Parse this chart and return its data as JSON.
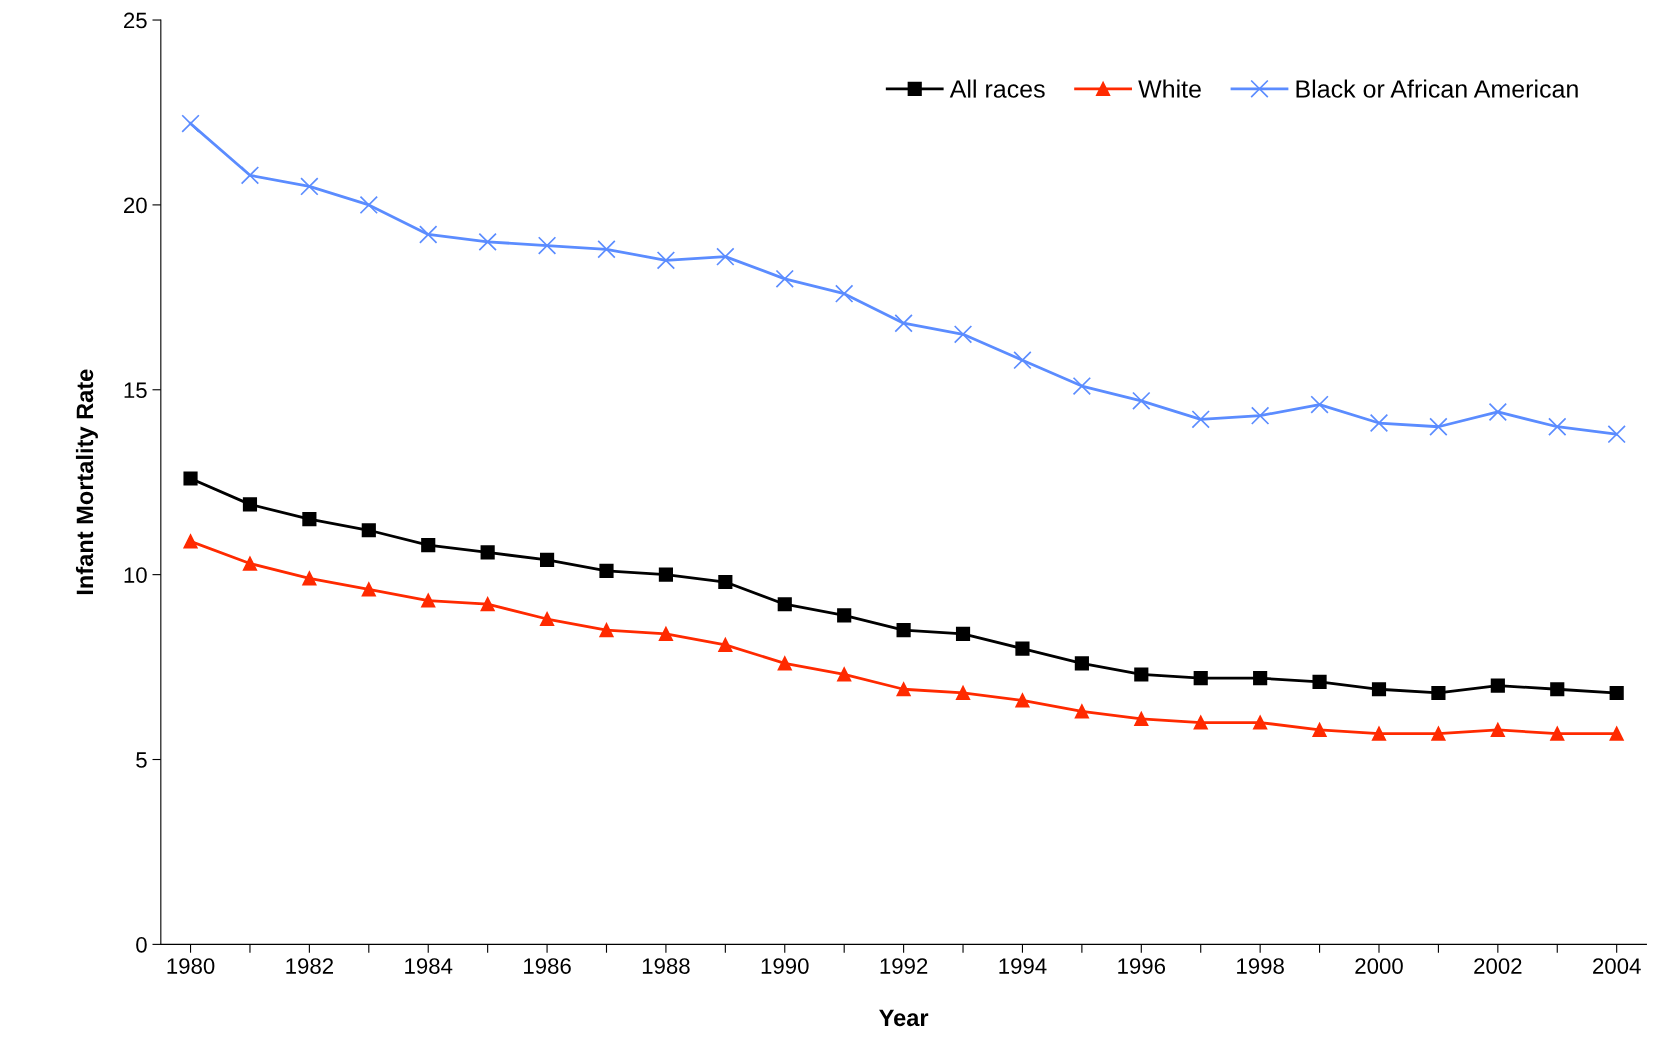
{
  "chart_data": {
    "type": "line",
    "xlabel": "Year",
    "ylabel": "Infant Mortality Rate",
    "categories": [
      "1980",
      null,
      "1982",
      null,
      "1984",
      null,
      "1986",
      null,
      "1988",
      null,
      "1990",
      null,
      "1992",
      null,
      "1994",
      null,
      "1996",
      null,
      "1998",
      null,
      "2000",
      null,
      "2002",
      null,
      "2004"
    ],
    "series": [
      {
        "name": "All races",
        "color": "#000000",
        "marker": "square",
        "values": [
          12.6,
          11.9,
          11.5,
          11.2,
          10.8,
          10.6,
          10.4,
          10.1,
          10.0,
          9.8,
          9.2,
          8.9,
          8.5,
          8.4,
          8.0,
          7.6,
          7.3,
          7.2,
          7.2,
          7.1,
          6.9,
          6.8,
          7.0,
          6.9,
          6.8
        ]
      },
      {
        "name": "White",
        "color": "#ff2a00",
        "marker": "triangle",
        "values": [
          10.9,
          10.3,
          9.9,
          9.6,
          9.3,
          9.2,
          8.8,
          8.5,
          8.4,
          8.1,
          7.6,
          7.3,
          6.9,
          6.8,
          6.6,
          6.3,
          6.1,
          6.0,
          6.0,
          5.8,
          5.7,
          5.7,
          5.8,
          5.7,
          5.7
        ]
      },
      {
        "name": "Black or African American",
        "color": "#5b8cff",
        "marker": "cross",
        "values": [
          22.2,
          20.8,
          20.5,
          20.0,
          19.2,
          19.0,
          18.9,
          18.8,
          18.5,
          18.6,
          18.0,
          17.6,
          16.8,
          16.5,
          15.8,
          15.1,
          14.7,
          14.2,
          14.3,
          14.6,
          14.1,
          14.0,
          14.4,
          14.0,
          13.8
        ]
      }
    ],
    "ylim": [
      0,
      25
    ],
    "yticks": [
      0,
      5,
      10,
      15,
      20,
      25
    ],
    "grid": false,
    "legend": "top right",
    "line_style": "solid"
  }
}
